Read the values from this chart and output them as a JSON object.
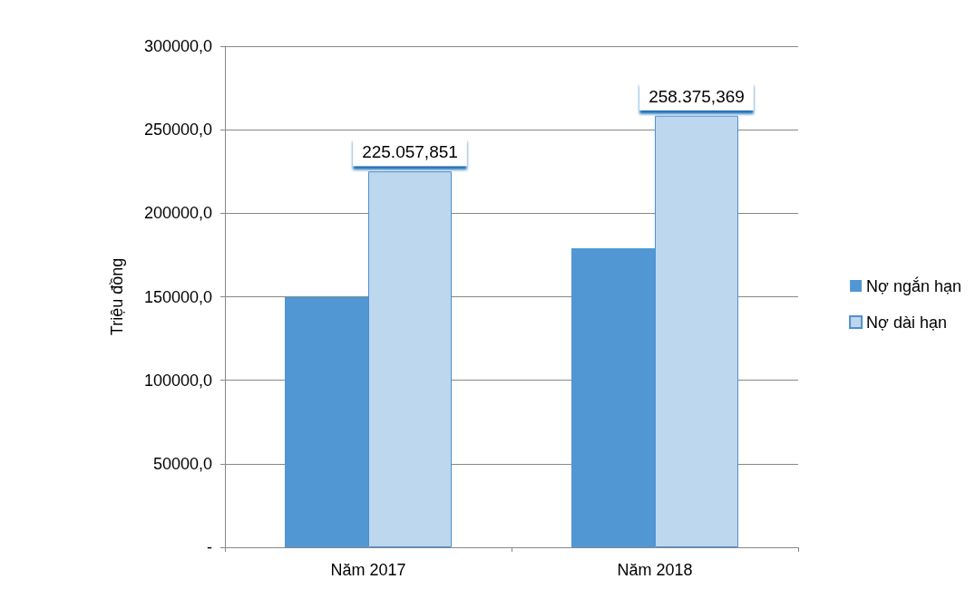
{
  "chart_data": {
    "type": "bar",
    "ylabel": "Triệu đồng",
    "categories": [
      "Năm 2017",
      "Năm 2018"
    ],
    "series": [
      {
        "name": "Nợ ngắn hạn",
        "color": "#5097d3",
        "values": [
          149800,
          179000
        ]
      },
      {
        "name": "Nợ dài hạn",
        "color": "#bdd7ee",
        "values": [
          225057.851,
          258375.369
        ],
        "value_labels": [
          "225.057,851",
          "258.375,369"
        ]
      }
    ],
    "ylim": [
      0,
      300000
    ],
    "yticks": [
      {
        "value": 0,
        "label": "-"
      },
      {
        "value": 50000,
        "label": "50000,0"
      },
      {
        "value": 100000,
        "label": "100000,0"
      },
      {
        "value": 150000,
        "label": "150000,0"
      },
      {
        "value": 200000,
        "label": "200000,0"
      },
      {
        "value": 250000,
        "label": "250000,0"
      },
      {
        "value": 300000,
        "label": "300000,0"
      }
    ],
    "grid": "y",
    "legend": "right"
  }
}
